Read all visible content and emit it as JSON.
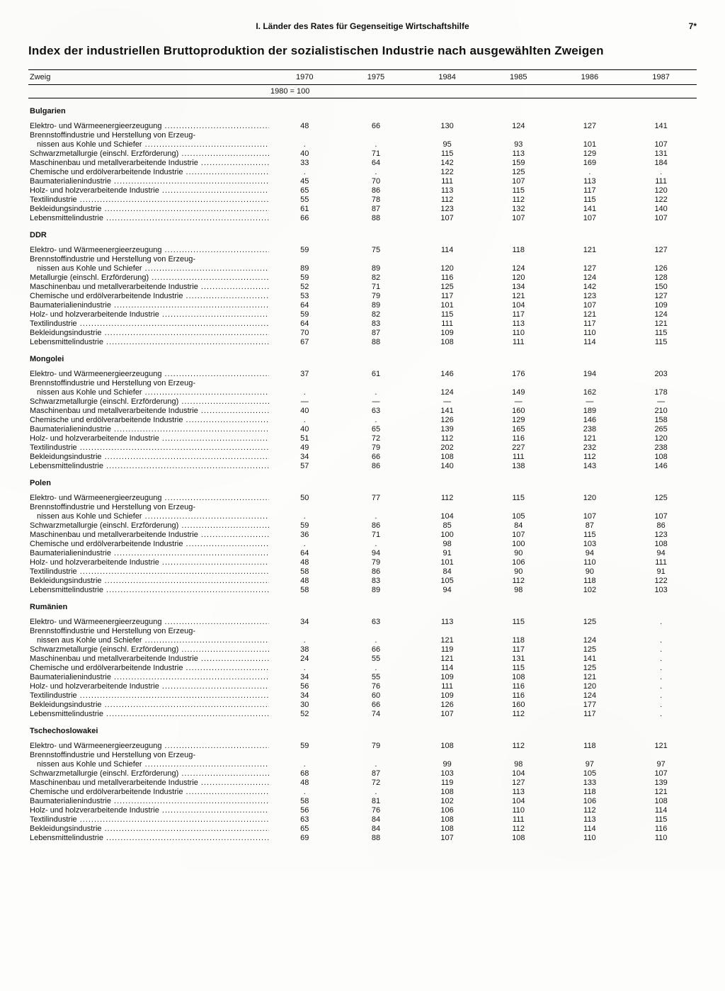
{
  "colors": {
    "background": "#fdfdfb",
    "text": "#111111",
    "rule": "#000000"
  },
  "typography": {
    "body_font": "Arial, Helvetica, sans-serif",
    "body_size_pt": 8,
    "title_size_pt": 13,
    "title_weight": "bold"
  },
  "header": {
    "section": "I. Länder des Rates für Gegenseitige Wirtschaftshilfe",
    "page_number": "7*"
  },
  "title": "Index der industriellen Bruttoproduktion der sozialistischen Industrie nach ausgewählten Zweigen",
  "table": {
    "type": "table",
    "column_header_label": "Zweig",
    "base_note": "1980 = 100",
    "years": [
      "1970",
      "1975",
      "1984",
      "1985",
      "1986",
      "1987"
    ],
    "column_widths_pct": [
      36,
      10.66,
      10.66,
      10.66,
      10.66,
      10.66,
      10.66
    ],
    "alignment": [
      "left",
      "center",
      "center",
      "center",
      "center",
      "center",
      "center"
    ],
    "countries": [
      {
        "name": "Bulgarien",
        "rows": [
          {
            "label": "Elektro- und Wärmeenergieerzeugung",
            "values": [
              "48",
              "66",
              "130",
              "124",
              "127",
              "141"
            ]
          },
          {
            "label": "Brennstoffindustrie und Herstellung von Erzeug-",
            "values": [
              "",
              "",
              "",
              "",
              "",
              ""
            ],
            "no_dots": true
          },
          {
            "label": "nissen aus Kohle und Schiefer",
            "values": [
              ".",
              ".",
              "95",
              "93",
              "101",
              "107"
            ],
            "indent": true
          },
          {
            "label": "Schwarzmetallurgie (einschl. Erzförderung)",
            "values": [
              "40",
              "71",
              "115",
              "113",
              "129",
              "131"
            ]
          },
          {
            "label": "Maschinenbau und metallverarbeitende Industrie",
            "values": [
              "33",
              "64",
              "142",
              "159",
              "169",
              "184"
            ]
          },
          {
            "label": "Chemische und erdölverarbeitende Industrie",
            "values": [
              ".",
              ".",
              "122",
              "125",
              ".",
              "."
            ]
          },
          {
            "label": "Baumaterialienindustrie",
            "values": [
              "45",
              "70",
              "111",
              "107",
              "113",
              "111"
            ]
          },
          {
            "label": "Holz- und holzverarbeitende Industrie",
            "values": [
              "65",
              "86",
              "113",
              "115",
              "117",
              "120"
            ]
          },
          {
            "label": "Textilindustrie",
            "values": [
              "55",
              "78",
              "112",
              "112",
              "115",
              "122"
            ]
          },
          {
            "label": "Bekleidungsindustrie",
            "values": [
              "61",
              "87",
              "123",
              "132",
              "141",
              "140"
            ]
          },
          {
            "label": "Lebensmittelindustrie",
            "values": [
              "66",
              "88",
              "107",
              "107",
              "107",
              "107"
            ]
          }
        ]
      },
      {
        "name": "DDR",
        "rows": [
          {
            "label": "Elektro- und Wärmeenergieerzeugung",
            "values": [
              "59",
              "75",
              "114",
              "118",
              "121",
              "127"
            ]
          },
          {
            "label": "Brennstoffindustrie und Herstellung von Erzeug-",
            "values": [
              "",
              "",
              "",
              "",
              "",
              ""
            ],
            "no_dots": true
          },
          {
            "label": "nissen aus Kohle und Schiefer",
            "values": [
              "89",
              "89",
              "120",
              "124",
              "127",
              "126"
            ],
            "indent": true
          },
          {
            "label": "Metallurgie (einschl. Erzförderung)",
            "values": [
              "59",
              "82",
              "116",
              "120",
              "124",
              "128"
            ]
          },
          {
            "label": "Maschinenbau und metallverarbeitende Industrie",
            "values": [
              "52",
              "71",
              "125",
              "134",
              "142",
              "150"
            ]
          },
          {
            "label": "Chemische und erdölverarbeitende Industrie",
            "values": [
              "53",
              "79",
              "117",
              "121",
              "123",
              "127"
            ]
          },
          {
            "label": "Baumaterialienindustrie",
            "values": [
              "64",
              "89",
              "101",
              "104",
              "107",
              "109"
            ]
          },
          {
            "label": "Holz- und holzverarbeitende Industrie",
            "values": [
              "59",
              "82",
              "115",
              "117",
              "121",
              "124"
            ]
          },
          {
            "label": "Textilindustrie",
            "values": [
              "64",
              "83",
              "111",
              "113",
              "117",
              "121"
            ]
          },
          {
            "label": "Bekleidungsindustrie",
            "values": [
              "70",
              "87",
              "109",
              "110",
              "110",
              "115"
            ]
          },
          {
            "label": "Lebensmittelindustrie",
            "values": [
              "67",
              "88",
              "108",
              "111",
              "114",
              "115"
            ]
          }
        ]
      },
      {
        "name": "Mongolei",
        "rows": [
          {
            "label": "Elektro- und Wärmeenergieerzeugung",
            "values": [
              "37",
              "61",
              "146",
              "176",
              "194",
              "203"
            ]
          },
          {
            "label": "Brennstoffindustrie und Herstellung von Erzeug-",
            "values": [
              "",
              "",
              "",
              "",
              "",
              ""
            ],
            "no_dots": true
          },
          {
            "label": "nissen aus Kohle und Schiefer",
            "values": [
              ".",
              ".",
              "124",
              "149",
              "162",
              "178"
            ],
            "indent": true
          },
          {
            "label": "Schwarzmetallurgie (einschl. Erzförderung)",
            "values": [
              "—",
              "—",
              "—",
              "—",
              "—",
              "—"
            ]
          },
          {
            "label": "Maschinenbau und metallverarbeitende Industrie",
            "values": [
              "40",
              "63",
              "141",
              "160",
              "189",
              "210"
            ]
          },
          {
            "label": "Chemische und erdölverarbeitende Industrie",
            "values": [
              ".",
              ".",
              "126",
              "129",
              "146",
              "158"
            ]
          },
          {
            "label": "Baumaterialienindustrie",
            "values": [
              "40",
              "65",
              "139",
              "165",
              "238",
              "265"
            ]
          },
          {
            "label": "Holz- und holzverarbeitende Industrie",
            "values": [
              "51",
              "72",
              "112",
              "116",
              "121",
              "120"
            ]
          },
          {
            "label": "Textilindustrie",
            "values": [
              "49",
              "79",
              "202",
              "227",
              "232",
              "238"
            ]
          },
          {
            "label": "Bekleidungsindustrie",
            "values": [
              "34",
              "66",
              "108",
              "111",
              "112",
              "108"
            ]
          },
          {
            "label": "Lebensmittelindustrie",
            "values": [
              "57",
              "86",
              "140",
              "138",
              "143",
              "146"
            ]
          }
        ]
      },
      {
        "name": "Polen",
        "rows": [
          {
            "label": "Elektro- und Wärmeenergieerzeugung",
            "values": [
              "50",
              "77",
              "112",
              "115",
              "120",
              "125"
            ]
          },
          {
            "label": "Brennstoffindustrie und Herstellung von Erzeug-",
            "values": [
              "",
              "",
              "",
              "",
              "",
              ""
            ],
            "no_dots": true
          },
          {
            "label": "nissen aus Kohle und Schiefer",
            "values": [
              ".",
              ".",
              "104",
              "105",
              "107",
              "107"
            ],
            "indent": true
          },
          {
            "label": "Schwarzmetallurgie (einschl. Erzförderung)",
            "values": [
              "59",
              "86",
              "85",
              "84",
              "87",
              "86"
            ]
          },
          {
            "label": "Maschinenbau und metallverarbeitende Industrie",
            "values": [
              "36",
              "71",
              "100",
              "107",
              "115",
              "123"
            ]
          },
          {
            "label": "Chemische und erdölverarbeitende Industrie",
            "values": [
              ".",
              ".",
              "98",
              "100",
              "103",
              "108"
            ]
          },
          {
            "label": "Baumaterialienindustrie",
            "values": [
              "64",
              "94",
              "91",
              "90",
              "94",
              "94"
            ]
          },
          {
            "label": "Holz- und holzverarbeitende Industrie",
            "values": [
              "48",
              "79",
              "101",
              "106",
              "110",
              "111"
            ]
          },
          {
            "label": "Textilindustrie",
            "values": [
              "58",
              "86",
              "84",
              "90",
              "90",
              "91"
            ]
          },
          {
            "label": "Bekleidungsindustrie",
            "values": [
              "48",
              "83",
              "105",
              "112",
              "118",
              "122"
            ]
          },
          {
            "label": "Lebensmittelindustrie",
            "values": [
              "58",
              "89",
              "94",
              "98",
              "102",
              "103"
            ]
          }
        ]
      },
      {
        "name": "Rumänien",
        "rows": [
          {
            "label": "Elektro- und Wärmeenergieerzeugung",
            "values": [
              "34",
              "63",
              "113",
              "115",
              "125",
              "."
            ]
          },
          {
            "label": "Brennstoffindustrie und Herstellung von Erzeug-",
            "values": [
              "",
              "",
              "",
              "",
              "",
              ""
            ],
            "no_dots": true
          },
          {
            "label": "nissen aus Kohle und Schiefer",
            "values": [
              ".",
              ".",
              "121",
              "118",
              "124",
              "."
            ],
            "indent": true
          },
          {
            "label": "Schwarzmetallurgie (einschl. Erzförderung)",
            "values": [
              "38",
              "66",
              "119",
              "117",
              "125",
              "."
            ]
          },
          {
            "label": "Maschinenbau und metallverarbeitende Industrie",
            "values": [
              "24",
              "55",
              "121",
              "131",
              "141",
              "."
            ]
          },
          {
            "label": "Chemische und erdölverarbeitende Industrie",
            "values": [
              ".",
              ".",
              "114",
              "115",
              "125",
              "."
            ]
          },
          {
            "label": "Baumaterialienindustrie",
            "values": [
              "34",
              "55",
              "109",
              "108",
              "121",
              "."
            ]
          },
          {
            "label": "Holz- und holzverarbeitende Industrie",
            "values": [
              "56",
              "76",
              "111",
              "116",
              "120",
              "."
            ]
          },
          {
            "label": "Textilindustrie",
            "values": [
              "34",
              "60",
              "109",
              "116",
              "124",
              "."
            ]
          },
          {
            "label": "Bekleidungsindustrie",
            "values": [
              "30",
              "66",
              "126",
              "160",
              "177",
              "."
            ]
          },
          {
            "label": "Lebensmittelindustrie",
            "values": [
              "52",
              "74",
              "107",
              "112",
              "117",
              "."
            ]
          }
        ]
      },
      {
        "name": "Tschechoslowakei",
        "rows": [
          {
            "label": "Elektro- und Wärmeenergieerzeugung",
            "values": [
              "59",
              "79",
              "108",
              "112",
              "118",
              "121"
            ]
          },
          {
            "label": "Brennstoffindustrie und Herstellung von Erzeug-",
            "values": [
              "",
              "",
              "",
              "",
              "",
              ""
            ],
            "no_dots": true
          },
          {
            "label": "nissen aus Kohle und Schiefer",
            "values": [
              ".",
              ".",
              "99",
              "98",
              "97",
              "97"
            ],
            "indent": true
          },
          {
            "label": "Schwarzmetallurgie (einschl. Erzförderung)",
            "values": [
              "68",
              "87",
              "103",
              "104",
              "105",
              "107"
            ]
          },
          {
            "label": "Maschinenbau und metallverarbeitende Industrie",
            "values": [
              "48",
              "72",
              "119",
              "127",
              "133",
              "139"
            ]
          },
          {
            "label": "Chemische und erdölverarbeitende Industrie",
            "values": [
              ".",
              ".",
              "108",
              "113",
              "118",
              "121"
            ]
          },
          {
            "label": "Baumaterialienindustrie",
            "values": [
              "58",
              "81",
              "102",
              "104",
              "106",
              "108"
            ]
          },
          {
            "label": "Holz- und holzverarbeitende Industrie",
            "values": [
              "56",
              "76",
              "106",
              "110",
              "112",
              "114"
            ]
          },
          {
            "label": "Textilindustrie",
            "values": [
              "63",
              "84",
              "108",
              "111",
              "113",
              "115"
            ]
          },
          {
            "label": "Bekleidungsindustrie",
            "values": [
              "65",
              "84",
              "108",
              "112",
              "114",
              "116"
            ]
          },
          {
            "label": "Lebensmittelindustrie",
            "values": [
              "69",
              "88",
              "107",
              "108",
              "110",
              "110"
            ]
          }
        ]
      }
    ]
  }
}
